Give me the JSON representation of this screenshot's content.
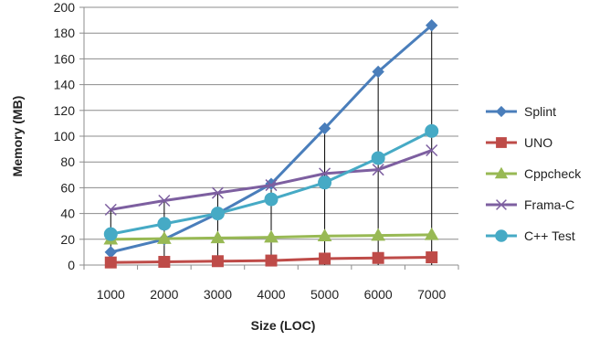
{
  "chart_data": {
    "type": "line",
    "xlabel": "Size (LOC)",
    "ylabel": "Memory (MB)",
    "categories": [
      "1000",
      "2000",
      "3000",
      "4000",
      "5000",
      "6000",
      "7000"
    ],
    "ylim": [
      0,
      200
    ],
    "yticks": [
      0,
      20,
      40,
      60,
      80,
      100,
      120,
      140,
      160,
      180,
      200
    ],
    "grid": true,
    "drop_lines": true,
    "legend_position": "right",
    "series": [
      {
        "name": "Splint",
        "values": [
          10,
          20,
          40,
          63,
          106,
          150,
          186
        ],
        "color": "#4a7ebb",
        "marker": "diamond"
      },
      {
        "name": "UNO",
        "values": [
          2,
          2.5,
          3,
          3.5,
          5,
          5.5,
          6
        ],
        "color": "#be4b48",
        "marker": "square"
      },
      {
        "name": "Cppcheck",
        "values": [
          20,
          20.5,
          21,
          21.5,
          22.5,
          23,
          23.5
        ],
        "color": "#98b954",
        "marker": "triangle"
      },
      {
        "name": "Frama-C",
        "values": [
          43,
          50,
          56,
          62,
          71,
          74,
          89
        ],
        "color": "#7d5fa0",
        "marker": "x"
      },
      {
        "name": "C++ Test",
        "values": [
          24,
          32,
          40,
          51,
          64,
          83,
          104
        ],
        "color": "#46aac5",
        "marker": "circle"
      }
    ]
  }
}
